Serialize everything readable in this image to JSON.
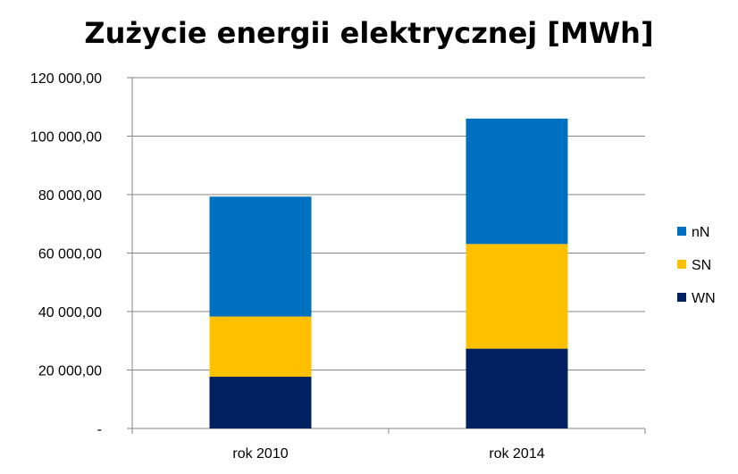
{
  "chart_data": {
    "type": "bar",
    "stacked": true,
    "title": "Zużycie energii elektrycznej [MWh]",
    "xlabel": "",
    "ylabel": "",
    "categories": [
      "rok 2010",
      "rok 2014"
    ],
    "series": [
      {
        "name": "WN",
        "values": [
          17700,
          27300
        ],
        "color": "#002060"
      },
      {
        "name": "SN",
        "values": [
          20600,
          35800
        ],
        "color": "#FFC000"
      },
      {
        "name": "nN",
        "values": [
          41000,
          42900
        ],
        "color": "#0070C0"
      }
    ],
    "ylim": [
      0,
      120000
    ],
    "yticks": [
      0,
      20000,
      40000,
      60000,
      80000,
      100000,
      120000
    ],
    "ytick_labels": [
      "-",
      "20 000,00",
      "40 000,00",
      "60 000,00",
      "80 000,00",
      "100 000,00",
      "120 000,00"
    ],
    "grid": true,
    "legend_position": "right",
    "legend_order": [
      "nN",
      "SN",
      "WN"
    ]
  }
}
